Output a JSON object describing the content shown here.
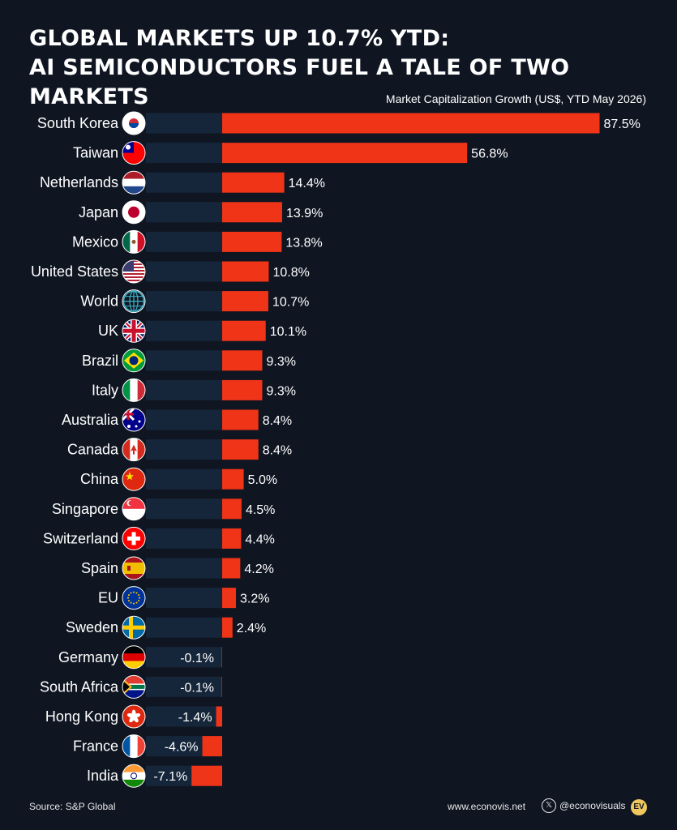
{
  "title_line1": "GLOBAL MARKETS UP 10.7% YTD:",
  "title_line2": "AI SEMICONDUCTORS FUEL A TALE OF TWO MARKETS",
  "subtitle": "Market Capitalization Growth (US$, YTD May 2026)",
  "footer": {
    "source": "Source: S&P Global",
    "site": "www.econovis.net",
    "handle": "@econovisuals",
    "logo": "EV"
  },
  "colors": {
    "background": "#0f1622",
    "bar": "#ef3418",
    "label_band": "#16263a"
  },
  "chart_data": {
    "type": "bar",
    "orientation": "horizontal",
    "categories": [
      "South Korea",
      "Taiwan",
      "Netherlands",
      "Japan",
      "Mexico",
      "United States",
      "World",
      "UK",
      "Brazil",
      "Italy",
      "Australia",
      "Canada",
      "China",
      "Singapore",
      "Switzerland",
      "Spain",
      "EU",
      "Sweden",
      "Germany",
      "South Africa",
      "Hong Kong",
      "France",
      "India"
    ],
    "values": [
      87.5,
      56.8,
      14.4,
      13.9,
      13.8,
      10.8,
      10.7,
      10.1,
      9.3,
      9.3,
      8.4,
      8.4,
      5.0,
      4.5,
      4.4,
      4.2,
      3.2,
      2.4,
      -0.1,
      -0.1,
      -1.4,
      -4.6,
      -7.1
    ],
    "value_labels": [
      "87.5%",
      "56.8%",
      "14.4%",
      "13.9%",
      "13.8%",
      "10.8%",
      "10.7%",
      "10.1%",
      "9.3%",
      "9.3%",
      "8.4%",
      "8.4%",
      "5.0%",
      "4.5%",
      "4.4%",
      "4.2%",
      "3.2%",
      "2.4%",
      "-0.1%",
      "-0.1%",
      "-1.4%",
      "-4.6%",
      "-7.1%"
    ],
    "flag_icons": [
      "south-korea-flag-icon",
      "taiwan-flag-icon",
      "netherlands-flag-icon",
      "japan-flag-icon",
      "mexico-flag-icon",
      "united-states-flag-icon",
      "world-globe-icon",
      "uk-flag-icon",
      "brazil-flag-icon",
      "italy-flag-icon",
      "australia-flag-icon",
      "canada-flag-icon",
      "china-flag-icon",
      "singapore-flag-icon",
      "switzerland-flag-icon",
      "spain-flag-icon",
      "eu-flag-icon",
      "sweden-flag-icon",
      "germany-flag-icon",
      "south-africa-flag-icon",
      "hong-kong-flag-icon",
      "france-flag-icon",
      "india-flag-icon"
    ],
    "xlim": [
      -7.1,
      87.5
    ],
    "grid": false,
    "legend": "none"
  }
}
